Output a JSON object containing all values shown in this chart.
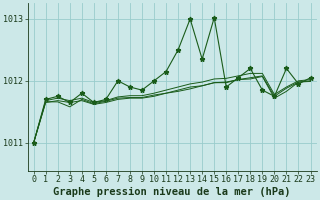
{
  "title": "Graphe pression niveau de la mer (hPa)",
  "background_color": "#cce8e8",
  "grid_color": "#99cccc",
  "line_color": "#1a5c1a",
  "text_color": "#1a3a1a",
  "xlim": [
    -0.5,
    23.5
  ],
  "ylim": [
    1010.55,
    1013.25
  ],
  "yticks": [
    1011,
    1012,
    1013
  ],
  "xticks": [
    0,
    1,
    2,
    3,
    4,
    5,
    6,
    7,
    8,
    9,
    10,
    11,
    12,
    13,
    14,
    15,
    16,
    17,
    18,
    19,
    20,
    21,
    22,
    23
  ],
  "series_main": [
    1011.0,
    1011.7,
    1011.75,
    1011.65,
    1011.8,
    1011.65,
    1011.7,
    1012.0,
    1011.9,
    1011.85,
    1012.0,
    1012.15,
    1012.5,
    1013.0,
    1012.35,
    1013.02,
    1011.9,
    1012.05,
    1012.2,
    1011.85,
    1011.75,
    1012.2,
    1011.95,
    1012.05
  ],
  "series_trend1": [
    1011.0,
    1011.65,
    1011.68,
    1011.65,
    1011.68,
    1011.62,
    1011.65,
    1011.7,
    1011.72,
    1011.72,
    1011.75,
    1011.8,
    1011.85,
    1011.9,
    1011.92,
    1011.97,
    1011.98,
    1012.02,
    1012.05,
    1012.08,
    1011.75,
    1011.88,
    1011.98,
    1012.0
  ],
  "series_trend2": [
    1011.0,
    1011.68,
    1011.72,
    1011.68,
    1011.72,
    1011.65,
    1011.68,
    1011.74,
    1011.76,
    1011.76,
    1011.8,
    1011.85,
    1011.9,
    1011.95,
    1011.98,
    1012.03,
    1012.04,
    1012.08,
    1012.12,
    1012.12,
    1011.78,
    1011.9,
    1012.0,
    1012.02
  ],
  "series_trend3": [
    1011.0,
    1011.66,
    1011.66,
    1011.58,
    1011.7,
    1011.63,
    1011.67,
    1011.72,
    1011.73,
    1011.73,
    1011.77,
    1011.8,
    1011.83,
    1011.87,
    1011.92,
    1011.97,
    1011.97,
    1012.02,
    1012.03,
    1012.07,
    1011.72,
    1011.83,
    1011.98,
    1011.99
  ],
  "title_fontsize": 7.5,
  "tick_fontsize": 6.0,
  "ylabel_fontsize": 6.5
}
